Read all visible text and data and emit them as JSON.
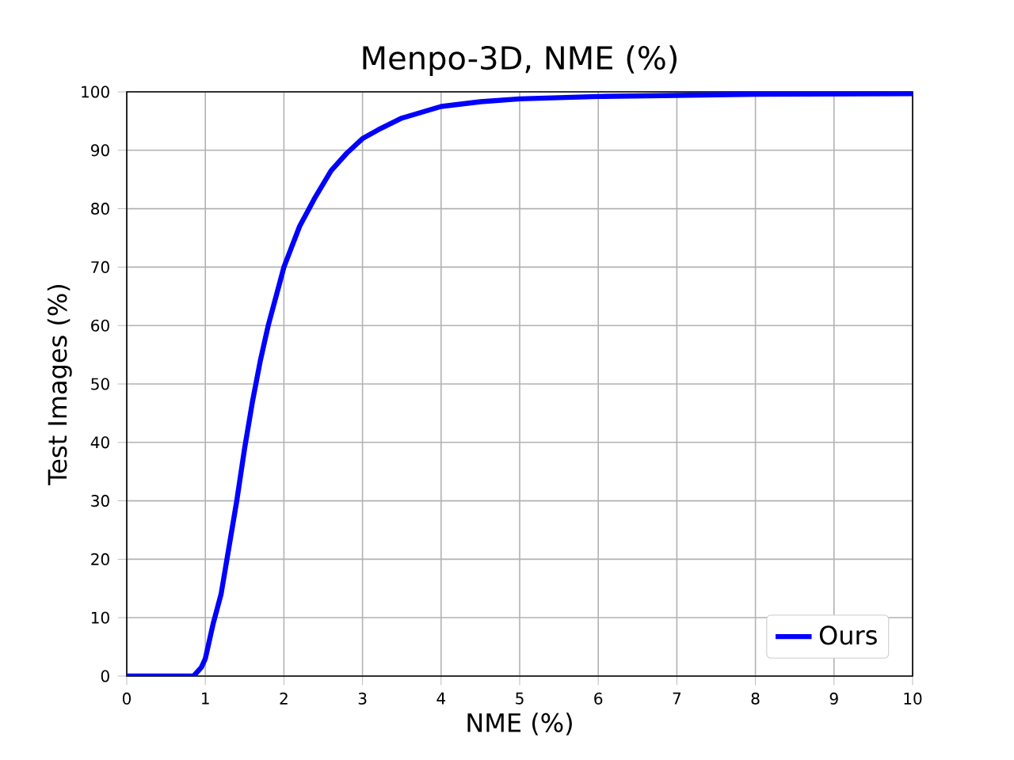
{
  "chart_data": {
    "type": "line",
    "title": "Menpo-3D, NME (%)",
    "xlabel": "NME (%)",
    "ylabel": "Test Images (%)",
    "xlim": [
      0,
      10
    ],
    "ylim": [
      0,
      100
    ],
    "xticks": [
      0,
      1,
      2,
      3,
      4,
      5,
      6,
      7,
      8,
      9,
      10
    ],
    "yticks": [
      0,
      10,
      20,
      30,
      40,
      50,
      60,
      70,
      80,
      90,
      100
    ],
    "grid": true,
    "legend": "bottom right",
    "line_style": "solid",
    "marker": "none",
    "series": [
      {
        "name": "Ours",
        "color": "#0000ff",
        "x": [
          0,
          0.85,
          0.95,
          1.0,
          1.05,
          1.1,
          1.2,
          1.3,
          1.4,
          1.5,
          1.6,
          1.7,
          1.8,
          1.9,
          2.0,
          2.2,
          2.4,
          2.6,
          2.8,
          3.0,
          3.2,
          3.5,
          4.0,
          4.5,
          5,
          6,
          7,
          8,
          10
        ],
        "values": [
          0,
          0,
          1.5,
          3,
          6,
          9,
          14,
          22,
          30,
          39,
          47,
          54,
          60,
          65,
          70,
          77,
          82,
          86.5,
          89.5,
          92,
          93.5,
          95.5,
          97.5,
          98.3,
          98.8,
          99.2,
          99.4,
          99.6,
          99.7
        ]
      }
    ]
  }
}
